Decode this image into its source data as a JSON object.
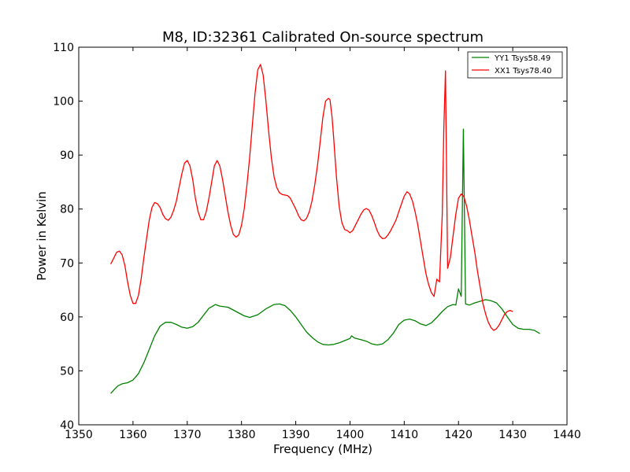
{
  "chart_data": {
    "type": "line",
    "title": "M8, ID:32361 Calibrated On-source spectrum",
    "xlabel": "Frequency (MHz)",
    "ylabel": "Power in Kelvin",
    "xlim": [
      1350,
      1440
    ],
    "ylim": [
      40,
      110
    ],
    "xticks": [
      1350,
      1360,
      1370,
      1380,
      1390,
      1400,
      1410,
      1420,
      1430,
      1440
    ],
    "yticks": [
      40,
      50,
      60,
      70,
      80,
      90,
      100,
      110
    ],
    "grid": false,
    "legend_position": "top-right",
    "series": [
      {
        "name": "YY1 Tsys58.49",
        "color": "#008000",
        "points": [
          [
            1355.9,
            45.8
          ],
          [
            1356.5,
            46.5
          ],
          [
            1357.2,
            47.2
          ],
          [
            1358.0,
            47.6
          ],
          [
            1359.0,
            47.8
          ],
          [
            1360.0,
            48.3
          ],
          [
            1361.0,
            49.5
          ],
          [
            1362.0,
            51.5
          ],
          [
            1363.0,
            54.0
          ],
          [
            1364.0,
            56.5
          ],
          [
            1365.0,
            58.3
          ],
          [
            1366.0,
            59.0
          ],
          [
            1367.0,
            59.0
          ],
          [
            1368.0,
            58.6
          ],
          [
            1369.0,
            58.1
          ],
          [
            1370.0,
            57.9
          ],
          [
            1371.0,
            58.2
          ],
          [
            1372.0,
            59.0
          ],
          [
            1373.0,
            60.3
          ],
          [
            1374.0,
            61.6
          ],
          [
            1375.2,
            62.3
          ],
          [
            1376.0,
            62.0
          ],
          [
            1377.5,
            61.8
          ],
          [
            1379.0,
            61.0
          ],
          [
            1380.5,
            60.2
          ],
          [
            1381.5,
            59.9
          ],
          [
            1383.0,
            60.4
          ],
          [
            1384.5,
            61.5
          ],
          [
            1386.0,
            62.3
          ],
          [
            1387.0,
            62.4
          ],
          [
            1388.0,
            62.1
          ],
          [
            1389.0,
            61.2
          ],
          [
            1390.0,
            60.0
          ],
          [
            1391.0,
            58.6
          ],
          [
            1392.0,
            57.2
          ],
          [
            1393.0,
            56.2
          ],
          [
            1394.0,
            55.4
          ],
          [
            1395.0,
            54.9
          ],
          [
            1396.0,
            54.8
          ],
          [
            1397.0,
            54.9
          ],
          [
            1398.0,
            55.2
          ],
          [
            1399.0,
            55.6
          ],
          [
            1400.0,
            56.0
          ],
          [
            1400.3,
            56.5
          ],
          [
            1400.8,
            56.1
          ],
          [
            1402.0,
            55.8
          ],
          [
            1403.0,
            55.5
          ],
          [
            1404.0,
            55.0
          ],
          [
            1405.0,
            54.8
          ],
          [
            1406.0,
            55.0
          ],
          [
            1407.0,
            55.8
          ],
          [
            1408.0,
            57.0
          ],
          [
            1409.0,
            58.6
          ],
          [
            1410.0,
            59.4
          ],
          [
            1411.0,
            59.6
          ],
          [
            1412.0,
            59.3
          ],
          [
            1413.0,
            58.7
          ],
          [
            1414.0,
            58.4
          ],
          [
            1415.0,
            58.9
          ],
          [
            1416.0,
            59.9
          ],
          [
            1417.0,
            61.0
          ],
          [
            1418.0,
            61.9
          ],
          [
            1419.0,
            62.3
          ],
          [
            1419.5,
            62.2
          ],
          [
            1420.0,
            65.2
          ],
          [
            1420.5,
            63.8
          ],
          [
            1420.9,
            94.8
          ],
          [
            1421.3,
            62.4
          ],
          [
            1422.0,
            62.2
          ],
          [
            1423.0,
            62.6
          ],
          [
            1424.0,
            62.9
          ],
          [
            1425.0,
            63.2
          ],
          [
            1426.0,
            63.0
          ],
          [
            1427.0,
            62.6
          ],
          [
            1428.0,
            61.5
          ],
          [
            1429.0,
            60.0
          ],
          [
            1430.0,
            58.6
          ],
          [
            1431.0,
            57.9
          ],
          [
            1432.0,
            57.7
          ],
          [
            1433.0,
            57.7
          ],
          [
            1434.0,
            57.5
          ],
          [
            1435.0,
            56.9
          ]
        ]
      },
      {
        "name": "XX1 Tsys78.40",
        "color": "#ff0000",
        "points": [
          [
            1355.9,
            69.8
          ],
          [
            1356.5,
            71.0
          ],
          [
            1357.0,
            72.0
          ],
          [
            1357.5,
            72.2
          ],
          [
            1358.0,
            71.5
          ],
          [
            1358.5,
            69.5
          ],
          [
            1359.0,
            66.5
          ],
          [
            1359.5,
            64.0
          ],
          [
            1360.0,
            62.5
          ],
          [
            1360.5,
            62.5
          ],
          [
            1361.0,
            64.0
          ],
          [
            1361.5,
            67.0
          ],
          [
            1362.0,
            71.0
          ],
          [
            1362.5,
            74.5
          ],
          [
            1363.0,
            78.0
          ],
          [
            1363.5,
            80.3
          ],
          [
            1364.0,
            81.2
          ],
          [
            1364.5,
            81.0
          ],
          [
            1365.0,
            80.3
          ],
          [
            1365.5,
            79.0
          ],
          [
            1366.0,
            78.2
          ],
          [
            1366.5,
            77.9
          ],
          [
            1367.0,
            78.5
          ],
          [
            1367.5,
            79.8
          ],
          [
            1368.0,
            81.5
          ],
          [
            1368.5,
            84.0
          ],
          [
            1369.0,
            86.5
          ],
          [
            1369.5,
            88.5
          ],
          [
            1370.0,
            89.0
          ],
          [
            1370.5,
            88.0
          ],
          [
            1371.0,
            85.5
          ],
          [
            1371.5,
            82.0
          ],
          [
            1372.0,
            79.5
          ],
          [
            1372.5,
            78.0
          ],
          [
            1373.0,
            78.0
          ],
          [
            1373.5,
            79.5
          ],
          [
            1374.0,
            82.0
          ],
          [
            1374.5,
            85.0
          ],
          [
            1375.0,
            88.0
          ],
          [
            1375.5,
            89.0
          ],
          [
            1376.0,
            88.0
          ],
          [
            1376.5,
            85.5
          ],
          [
            1377.0,
            82.5
          ],
          [
            1377.5,
            79.5
          ],
          [
            1378.0,
            77.0
          ],
          [
            1378.5,
            75.3
          ],
          [
            1379.0,
            74.8
          ],
          [
            1379.5,
            75.2
          ],
          [
            1380.0,
            77.0
          ],
          [
            1380.5,
            80.0
          ],
          [
            1381.0,
            84.5
          ],
          [
            1381.5,
            89.5
          ],
          [
            1382.0,
            95.5
          ],
          [
            1382.5,
            101.5
          ],
          [
            1383.0,
            105.8
          ],
          [
            1383.5,
            106.8
          ],
          [
            1384.0,
            104.8
          ],
          [
            1384.5,
            100.0
          ],
          [
            1385.0,
            94.5
          ],
          [
            1385.5,
            89.5
          ],
          [
            1386.0,
            86.0
          ],
          [
            1386.5,
            84.0
          ],
          [
            1387.0,
            83.0
          ],
          [
            1387.5,
            82.7
          ],
          [
            1388.5,
            82.5
          ],
          [
            1389.0,
            82.0
          ],
          [
            1389.5,
            81.0
          ],
          [
            1390.0,
            80.0
          ],
          [
            1390.5,
            78.8
          ],
          [
            1391.0,
            78.0
          ],
          [
            1391.5,
            77.8
          ],
          [
            1392.0,
            78.3
          ],
          [
            1392.5,
            79.5
          ],
          [
            1393.0,
            81.5
          ],
          [
            1393.5,
            84.5
          ],
          [
            1394.0,
            88.0
          ],
          [
            1394.5,
            92.5
          ],
          [
            1395.0,
            97.0
          ],
          [
            1395.5,
            100.0
          ],
          [
            1396.0,
            100.5
          ],
          [
            1396.3,
            100.3
          ],
          [
            1396.7,
            97.0
          ],
          [
            1397.0,
            93.0
          ],
          [
            1397.5,
            86.0
          ],
          [
            1398.0,
            80.5
          ],
          [
            1398.5,
            77.5
          ],
          [
            1399.0,
            76.2
          ],
          [
            1399.5,
            76.0
          ],
          [
            1400.0,
            75.6
          ],
          [
            1400.5,
            76.0
          ],
          [
            1401.0,
            77.0
          ],
          [
            1401.5,
            78.0
          ],
          [
            1402.0,
            79.0
          ],
          [
            1402.5,
            79.8
          ],
          [
            1403.0,
            80.1
          ],
          [
            1403.5,
            79.8
          ],
          [
            1404.0,
            78.8
          ],
          [
            1404.5,
            77.5
          ],
          [
            1405.0,
            76.0
          ],
          [
            1405.5,
            75.0
          ],
          [
            1406.0,
            74.5
          ],
          [
            1406.5,
            74.6
          ],
          [
            1407.0,
            75.2
          ],
          [
            1407.5,
            76.0
          ],
          [
            1408.0,
            77.0
          ],
          [
            1408.5,
            78.0
          ],
          [
            1409.0,
            79.5
          ],
          [
            1409.5,
            81.0
          ],
          [
            1410.0,
            82.4
          ],
          [
            1410.5,
            83.2
          ],
          [
            1411.0,
            82.8
          ],
          [
            1411.5,
            81.5
          ],
          [
            1412.0,
            79.5
          ],
          [
            1412.5,
            77.0
          ],
          [
            1413.0,
            74.0
          ],
          [
            1413.5,
            71.0
          ],
          [
            1414.0,
            68.0
          ],
          [
            1414.5,
            66.0
          ],
          [
            1415.0,
            64.5
          ],
          [
            1415.5,
            63.8
          ],
          [
            1416.0,
            67.0
          ],
          [
            1416.5,
            66.5
          ],
          [
            1417.0,
            79.0
          ],
          [
            1417.3,
            95.0
          ],
          [
            1417.6,
            105.6
          ],
          [
            1418.0,
            69.0
          ],
          [
            1418.5,
            71.0
          ],
          [
            1419.0,
            75.0
          ],
          [
            1419.5,
            79.0
          ],
          [
            1420.0,
            82.0
          ],
          [
            1420.5,
            82.8
          ],
          [
            1421.0,
            82.3
          ],
          [
            1421.5,
            80.5
          ],
          [
            1422.0,
            78.0
          ],
          [
            1422.5,
            75.0
          ],
          [
            1423.0,
            72.0
          ],
          [
            1423.5,
            68.5
          ],
          [
            1424.0,
            65.5
          ],
          [
            1424.5,
            62.5
          ],
          [
            1425.0,
            60.5
          ],
          [
            1425.5,
            59.0
          ],
          [
            1426.0,
            58.0
          ],
          [
            1426.5,
            57.5
          ],
          [
            1427.0,
            57.8
          ],
          [
            1427.5,
            58.5
          ],
          [
            1428.0,
            59.5
          ],
          [
            1428.5,
            60.5
          ],
          [
            1429.0,
            61.0
          ],
          [
            1429.5,
            61.2
          ],
          [
            1430.0,
            61.0
          ]
        ]
      }
    ]
  }
}
